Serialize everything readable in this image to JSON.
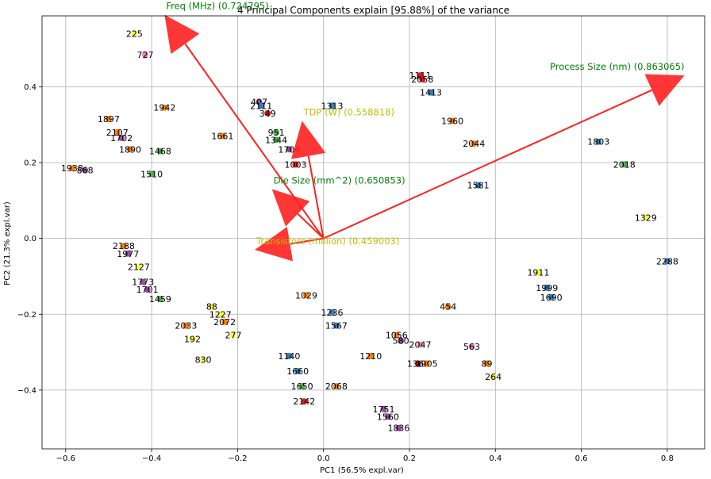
{
  "chart_data": {
    "type": "scatter",
    "title": "4 Principal Components explain [95.88%] of the variance",
    "xlabel": "PC1 (56.5% expl.var)",
    "ylabel": "PC2 (21.3% expl.var)",
    "xlim": [
      -0.655,
      0.887
    ],
    "ylim": [
      -0.555,
      0.587
    ],
    "x_ticks": [
      -0.6,
      -0.4,
      -0.2,
      0.0,
      0.2,
      0.4,
      0.6,
      0.8
    ],
    "x_tick_labels": [
      "−0.6",
      "−0.4",
      "−0.2",
      "0.0",
      "0.2",
      "0.4",
      "0.6",
      "0.8"
    ],
    "y_ticks": [
      -0.4,
      -0.2,
      0.0,
      0.2,
      0.4
    ],
    "y_tick_labels": [
      "−0.4",
      "−0.2",
      "0.0",
      "0.2",
      "0.4"
    ],
    "grid": true,
    "loadings": [
      {
        "label": "Freq (MHz) (0.724795)",
        "x": -0.37,
        "y": 0.59,
        "color": "#008000"
      },
      {
        "label": "Process Size (nm) (0.863065)",
        "x": 0.84,
        "y": 0.43,
        "color": "#008000"
      },
      {
        "label": "TDP (W) (0.558818)",
        "x": -0.05,
        "y": 0.31,
        "color": "#bfbf00"
      },
      {
        "label": "Die Size (mm^2) (0.650853)",
        "x": -0.12,
        "y": 0.13,
        "color": "#008000"
      },
      {
        "label": "Transistors (million) (0.459003)",
        "x": -0.16,
        "y": -0.03,
        "color": "#bfbf00"
      }
    ],
    "points": [
      {
        "id": "225",
        "x": -0.44,
        "y": 0.54,
        "c": "#ffff33"
      },
      {
        "id": "727",
        "x": -0.415,
        "y": 0.485,
        "c": "#f781bf"
      },
      {
        "id": "1111",
        "x": 0.225,
        "y": 0.43,
        "c": "#e41a1c"
      },
      {
        "id": "2058",
        "x": 0.23,
        "y": 0.42,
        "c": "#e41a1c"
      },
      {
        "id": "1413",
        "x": 0.25,
        "y": 0.385,
        "c": "#377eb8"
      },
      {
        "id": "407",
        "x": -0.15,
        "y": 0.36,
        "c": "#984ea3"
      },
      {
        "id": "2111",
        "x": -0.145,
        "y": 0.35,
        "c": "#377eb8"
      },
      {
        "id": "1313",
        "x": 0.02,
        "y": 0.35,
        "c": "#377eb8"
      },
      {
        "id": "1942",
        "x": -0.37,
        "y": 0.345,
        "c": "#ff7f00"
      },
      {
        "id": "349",
        "x": -0.13,
        "y": 0.33,
        "c": "#e41a1c"
      },
      {
        "id": "1960",
        "x": 0.3,
        "y": 0.31,
        "c": "#ff7f00"
      },
      {
        "id": "1897",
        "x": -0.5,
        "y": 0.315,
        "c": "#ff7f00"
      },
      {
        "id": "951",
        "x": -0.11,
        "y": 0.28,
        "c": "#4daf4a"
      },
      {
        "id": "2107",
        "x": -0.48,
        "y": 0.28,
        "c": "#ff7f00"
      },
      {
        "id": "1702",
        "x": -0.47,
        "y": 0.265,
        "c": "#984ea3"
      },
      {
        "id": "1661",
        "x": -0.235,
        "y": 0.27,
        "c": "#ff7f00"
      },
      {
        "id": "1344",
        "x": -0.11,
        "y": 0.26,
        "c": "#4daf4a"
      },
      {
        "id": "1803",
        "x": 0.64,
        "y": 0.255,
        "c": "#377eb8"
      },
      {
        "id": "1890",
        "x": -0.45,
        "y": 0.235,
        "c": "#ff7f00"
      },
      {
        "id": "1468",
        "x": -0.38,
        "y": 0.23,
        "c": "#4daf4a"
      },
      {
        "id": "1704",
        "x": -0.08,
        "y": 0.235,
        "c": "#984ea3"
      },
      {
        "id": "2044",
        "x": 0.35,
        "y": 0.25,
        "c": "#ff7f00"
      },
      {
        "id": "1003",
        "x": -0.065,
        "y": 0.195,
        "c": "#e41a1c"
      },
      {
        "id": "2018",
        "x": 0.7,
        "y": 0.195,
        "c": "#4daf4a"
      },
      {
        "id": "1938",
        "x": -0.585,
        "y": 0.185,
        "c": "#ff7f00"
      },
      {
        "id": "868",
        "x": -0.555,
        "y": 0.18,
        "c": "#984ea3"
      },
      {
        "id": "1510",
        "x": -0.4,
        "y": 0.17,
        "c": "#4daf4a"
      },
      {
        "id": "1581",
        "x": 0.36,
        "y": 0.14,
        "c": "#377eb8"
      },
      {
        "id": "1329",
        "x": 0.75,
        "y": 0.055,
        "c": "#ffff33"
      },
      {
        "id": "2188",
        "x": -0.465,
        "y": -0.02,
        "c": "#ff7f00"
      },
      {
        "id": "1977",
        "x": -0.455,
        "y": -0.04,
        "c": "#984ea3"
      },
      {
        "id": "2127",
        "x": -0.43,
        "y": -0.075,
        "c": "#ffff33"
      },
      {
        "id": "2288",
        "x": 0.8,
        "y": -0.06,
        "c": "#377eb8"
      },
      {
        "id": "1773",
        "x": -0.42,
        "y": -0.115,
        "c": "#984ea3"
      },
      {
        "id": "1701",
        "x": -0.41,
        "y": -0.135,
        "c": "#984ea3"
      },
      {
        "id": "1459",
        "x": -0.38,
        "y": -0.16,
        "c": "#4daf4a"
      },
      {
        "id": "454",
        "x": 0.29,
        "y": -0.18,
        "c": "#ff7f00"
      },
      {
        "id": "1999",
        "x": 0.52,
        "y": -0.13,
        "c": "#377eb8"
      },
      {
        "id": "1690",
        "x": 0.53,
        "y": -0.155,
        "c": "#377eb8"
      },
      {
        "id": "88",
        "x": -0.26,
        "y": -0.18,
        "c": "#ffff33"
      },
      {
        "id": "1227",
        "x": -0.24,
        "y": -0.2,
        "c": "#ffff33"
      },
      {
        "id": "2072",
        "x": -0.23,
        "y": -0.22,
        "c": "#ff7f00"
      },
      {
        "id": "2033",
        "x": -0.32,
        "y": -0.23,
        "c": "#ff7f00"
      },
      {
        "id": "277",
        "x": -0.21,
        "y": -0.255,
        "c": "#ffff33"
      },
      {
        "id": "192",
        "x": -0.305,
        "y": -0.265,
        "c": "#ffff33"
      },
      {
        "id": "1567",
        "x": 0.03,
        "y": -0.23,
        "c": "#377eb8"
      },
      {
        "id": "1056",
        "x": 0.17,
        "y": -0.255,
        "c": "#ff7f00"
      },
      {
        "id": "563",
        "x": 0.345,
        "y": -0.285,
        "c": "#f781bf"
      },
      {
        "id": "89",
        "x": 0.38,
        "y": -0.33,
        "c": "#ff7f00"
      },
      {
        "id": "264",
        "x": 0.395,
        "y": -0.365,
        "c": "#ffff33"
      },
      {
        "id": "830",
        "x": -0.28,
        "y": -0.32,
        "c": "#ffff33"
      },
      {
        "id": "1368",
        "x": 0.22,
        "y": -0.33,
        "c": "#e41a1c"
      },
      {
        "id": "1660",
        "x": -0.06,
        "y": -0.35,
        "c": "#377eb8"
      },
      {
        "id": "1650",
        "x": -0.05,
        "y": -0.39,
        "c": "#4daf4a"
      },
      {
        "id": "2068",
        "x": 0.03,
        "y": -0.39,
        "c": "#ff7f00"
      },
      {
        "id": "2142",
        "x": -0.045,
        "y": -0.43,
        "c": "#e41a1c"
      },
      {
        "id": "1751",
        "x": 0.14,
        "y": -0.45,
        "c": "#984ea3"
      },
      {
        "id": "1560",
        "x": 0.15,
        "y": -0.47,
        "c": "#984ea3"
      },
      {
        "id": "1836",
        "x": 0.175,
        "y": -0.5,
        "c": "#984ea3"
      },
      {
        "id": "1140",
        "x": -0.08,
        "y": -0.31,
        "c": "#377eb8"
      },
      {
        "id": "1210",
        "x": 0.11,
        "y": -0.31,
        "c": "#ff7f00"
      },
      {
        "id": "1029",
        "x": -0.04,
        "y": -0.15,
        "c": "#ff7f00"
      },
      {
        "id": "1236",
        "x": 0.02,
        "y": -0.195,
        "c": "#377eb8"
      },
      {
        "id": "2047",
        "x": 0.225,
        "y": -0.28,
        "c": "#f781bf"
      },
      {
        "id": "1911",
        "x": 0.5,
        "y": -0.09,
        "c": "#ffff33"
      },
      {
        "id": "580",
        "x": 0.18,
        "y": -0.27,
        "c": "#984ea3"
      },
      {
        "id": "1905",
        "x": 0.24,
        "y": -0.33,
        "c": "#ff7f00"
      }
    ]
  }
}
